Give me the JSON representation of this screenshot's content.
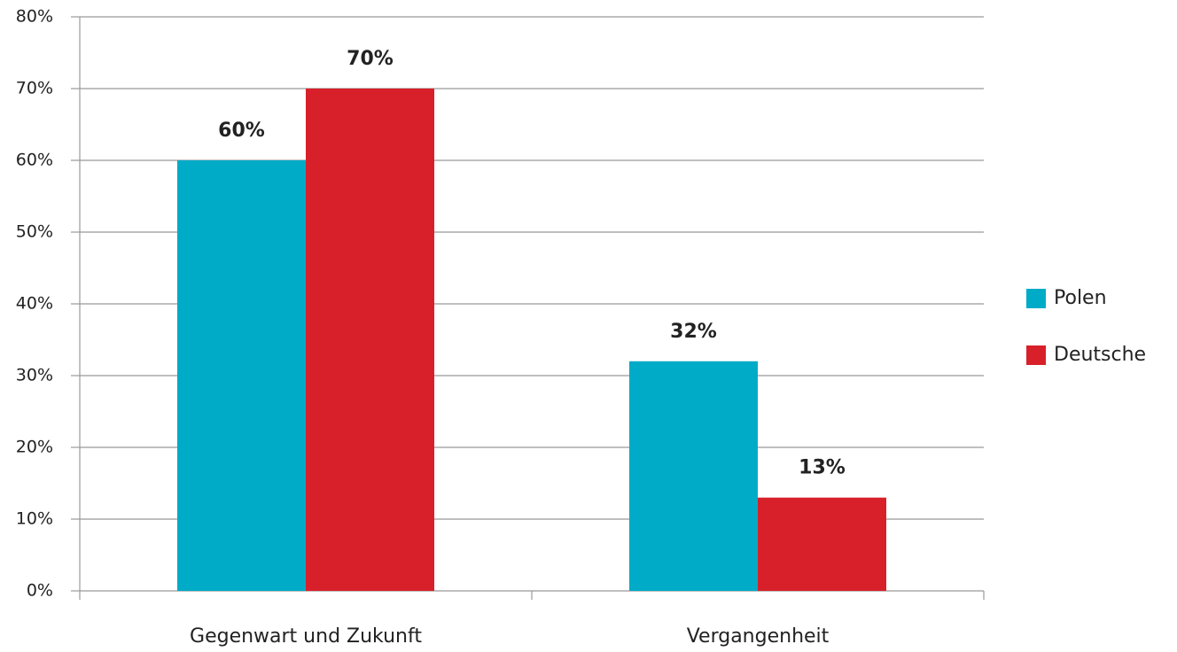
{
  "chart_data": {
    "type": "bar",
    "categories": [
      "Gegenwart und Zukunft",
      "Vergangenheit"
    ],
    "series": [
      {
        "name": "Polen",
        "color": "#00abc8",
        "values": [
          60,
          32
        ],
        "value_labels": [
          "60%",
          "32%"
        ]
      },
      {
        "name": "Deutsche",
        "color": "#d8202a",
        "values": [
          70,
          13
        ],
        "value_labels": [
          "70%",
          "13%"
        ]
      }
    ],
    "ylim": [
      0,
      80
    ],
    "yticks": [
      {
        "value": 0,
        "label": "0%"
      },
      {
        "value": 10,
        "label": "10%"
      },
      {
        "value": 20,
        "label": "20%"
      },
      {
        "value": 30,
        "label": "30%"
      },
      {
        "value": 40,
        "label": "40%"
      },
      {
        "value": 50,
        "label": "50%"
      },
      {
        "value": 60,
        "label": "60%"
      },
      {
        "value": 70,
        "label": "70%"
      },
      {
        "value": 80,
        "label": "80%"
      }
    ],
    "grid": true,
    "legend": "right"
  }
}
